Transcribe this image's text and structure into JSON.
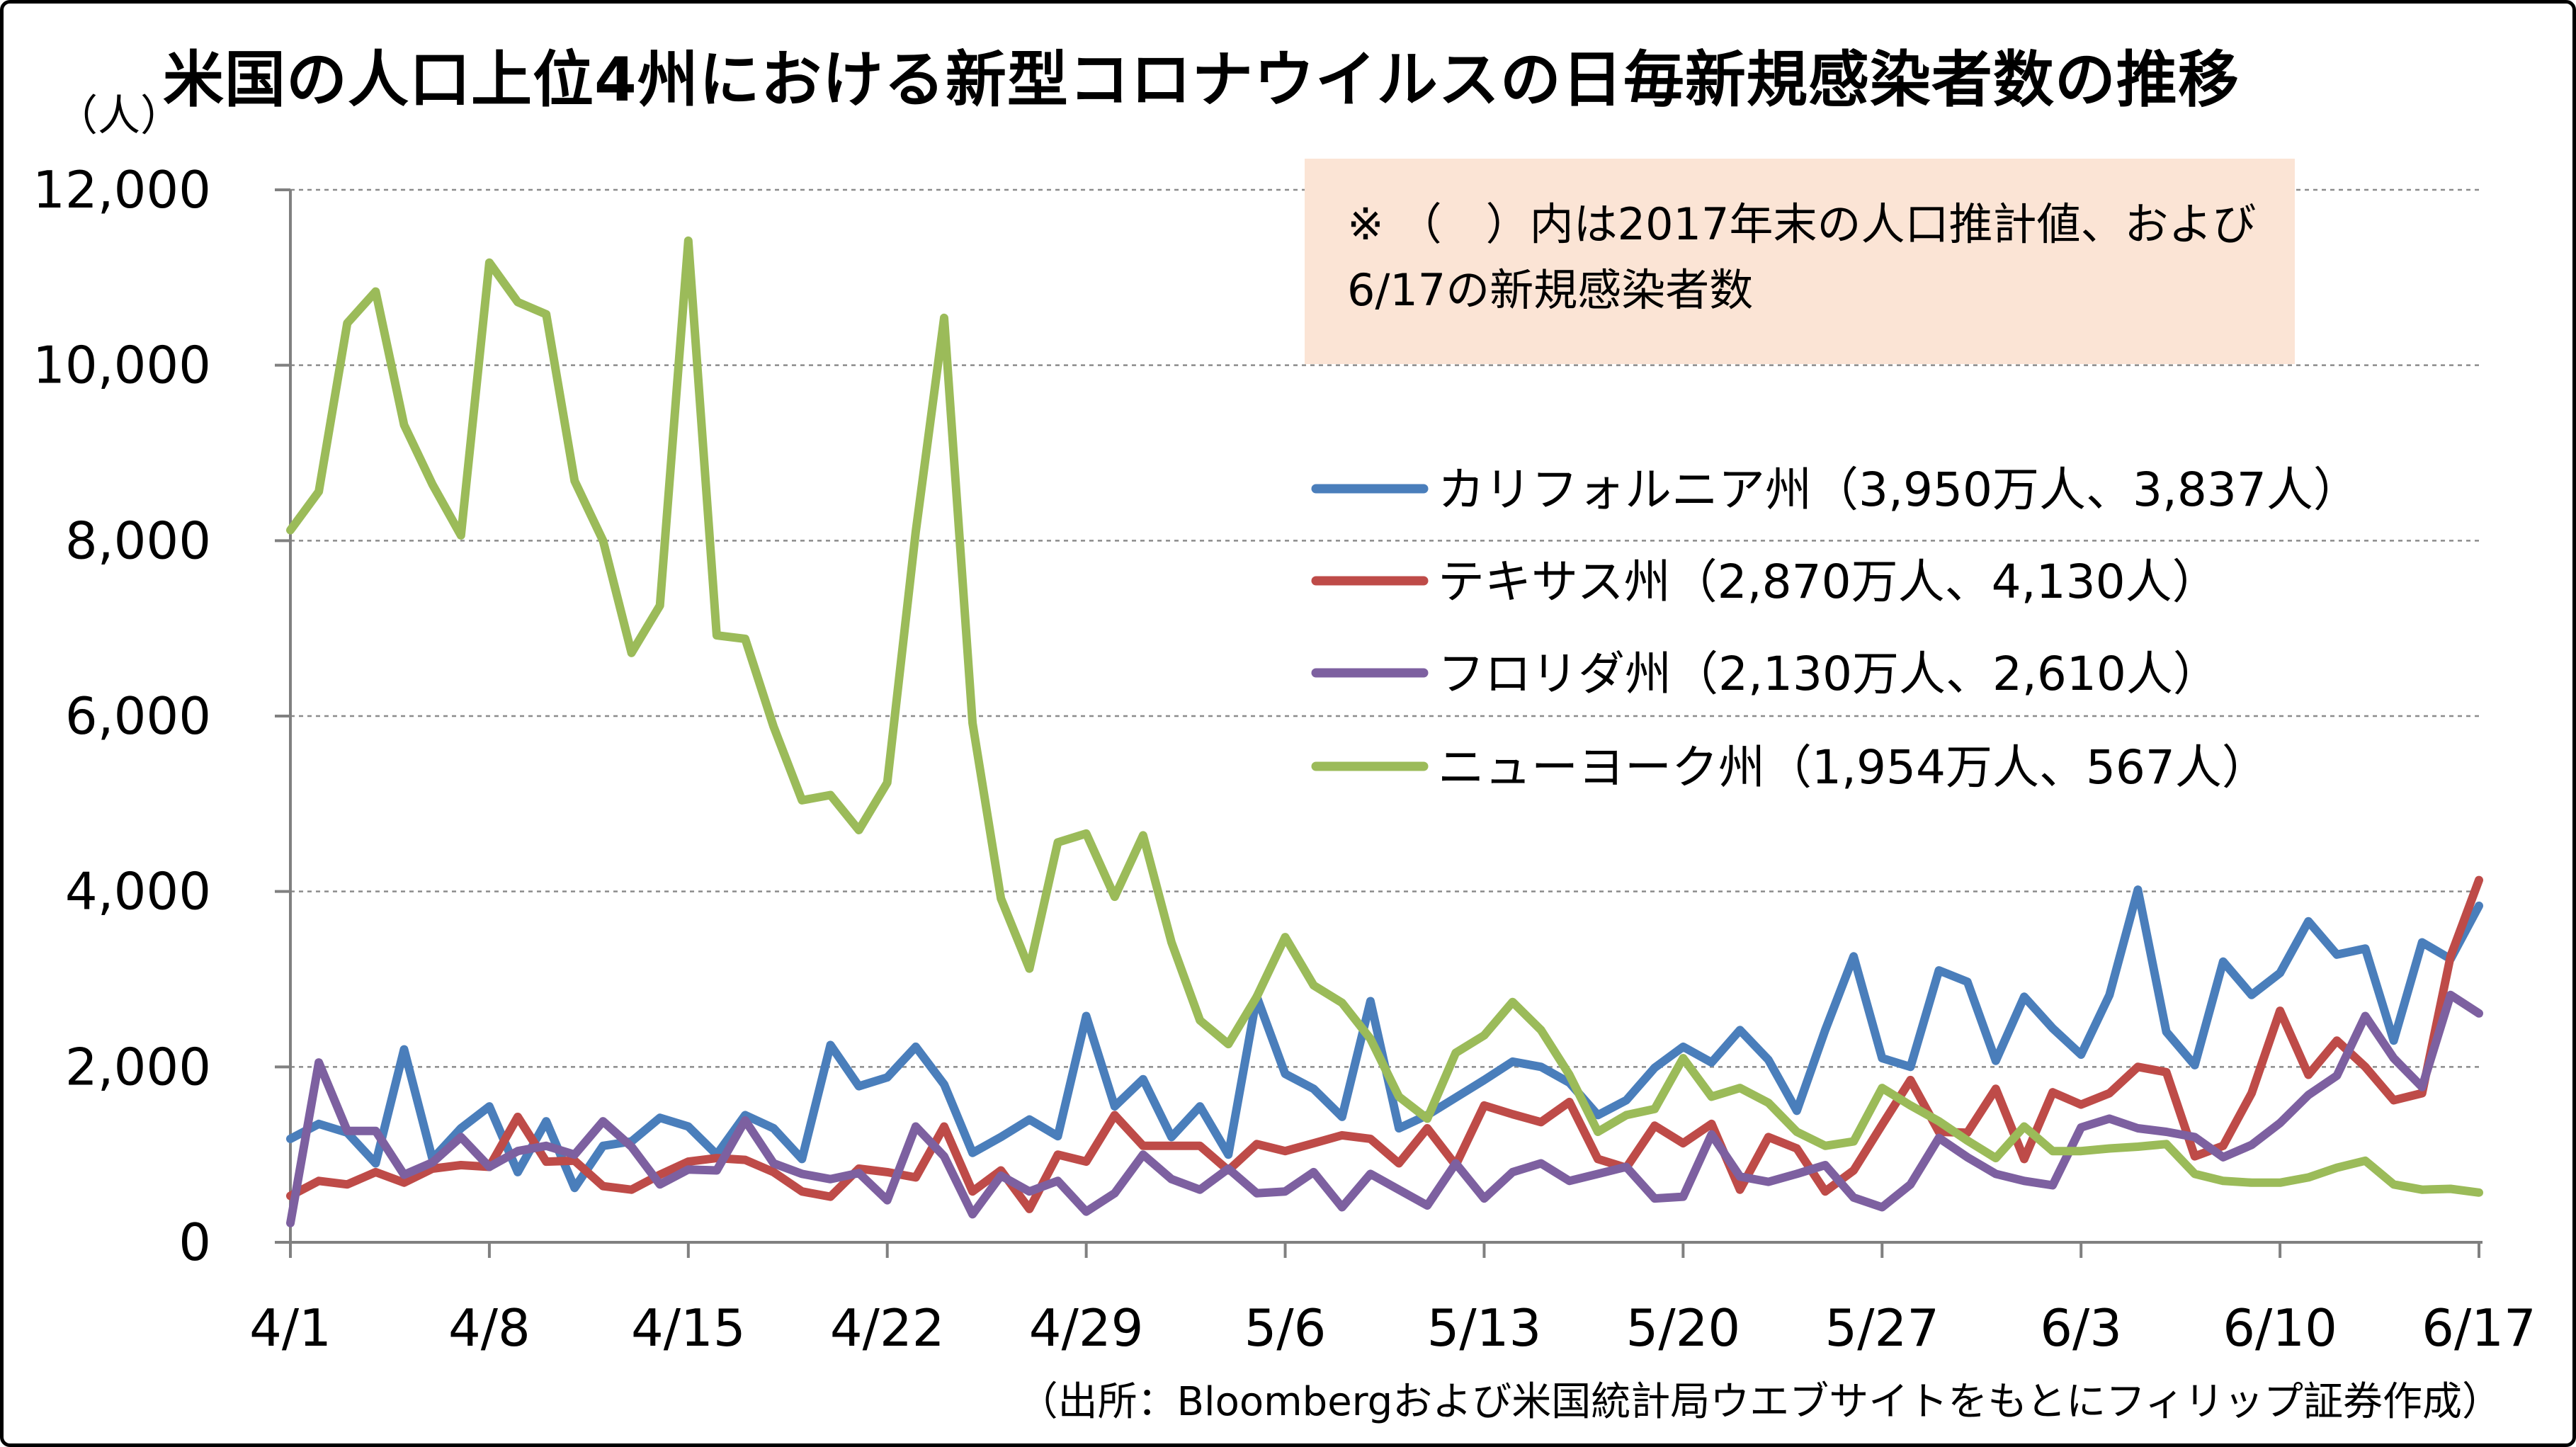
{
  "chart_data": {
    "type": "line",
    "title": "米国の人口上位4州における新型コロナウイルスの日毎新規感染者数の推移",
    "ylabel": "（人）",
    "ylim": [
      0,
      12000
    ],
    "yticks": [
      0,
      2000,
      4000,
      6000,
      8000,
      10000,
      12000
    ],
    "ytick_labels": [
      "0",
      "2,000",
      "4,000",
      "6,000",
      "8,000",
      "10,000",
      "12,000"
    ],
    "x_tick_positions": [
      0,
      7,
      14,
      21,
      28,
      35,
      42,
      49,
      56,
      63,
      70,
      77
    ],
    "x_tick_labels": [
      "4/1",
      "4/8",
      "4/15",
      "4/22",
      "4/29",
      "5/6",
      "5/13",
      "5/20",
      "5/27",
      "6/3",
      "6/10",
      "6/17"
    ],
    "grid": "horizontal dashed",
    "legend_position": "right",
    "series": [
      {
        "name": "カリフォルニア州（3,950万人、3,837人）",
        "color": "#4A7EBB",
        "values": [
          1180,
          1350,
          1250,
          900,
          2200,
          950,
          1300,
          1550,
          800,
          1380,
          620,
          1100,
          1150,
          1420,
          1320,
          1000,
          1450,
          1300,
          950,
          2250,
          1780,
          1880,
          2230,
          1800,
          1020,
          1200,
          1400,
          1210,
          2580,
          1550,
          1860,
          1200,
          1550,
          1000,
          2800,
          1920,
          1750,
          1430,
          2750,
          1300,
          1450,
          1650,
          1850,
          2060,
          2000,
          1820,
          1450,
          1620,
          1990,
          2230,
          2050,
          2420,
          2080,
          1500,
          2420,
          3260,
          2100,
          2000,
          3100,
          2970,
          2070,
          2800,
          2440,
          2140,
          2820,
          4020,
          2400,
          2020,
          3200,
          2820,
          3070,
          3660,
          3280,
          3350,
          2300,
          3420,
          3230,
          3837
        ]
      },
      {
        "name": "テキサス州（2,870万人、4,130人）",
        "color": "#BE4B48",
        "values": [
          530,
          700,
          660,
          800,
          680,
          840,
          880,
          860,
          1430,
          920,
          930,
          640,
          600,
          770,
          920,
          960,
          940,
          800,
          580,
          520,
          840,
          800,
          740,
          1320,
          580,
          820,
          380,
          1000,
          920,
          1450,
          1100,
          1100,
          1100,
          820,
          1120,
          1040,
          1130,
          1220,
          1180,
          900,
          1300,
          880,
          1560,
          1460,
          1370,
          1600,
          950,
          850,
          1330,
          1130,
          1350,
          600,
          1200,
          1070,
          580,
          820,
          1340,
          1850,
          1260,
          1250,
          1750,
          950,
          1710,
          1570,
          1700,
          2000,
          1940,
          980,
          1100,
          1700,
          2640,
          1910,
          2300,
          2000,
          1620,
          1700,
          3260,
          4130
        ]
      },
      {
        "name": "フロリダ州（2,130万人、2,610人）",
        "color": "#7D60A0",
        "values": [
          220,
          2050,
          1270,
          1270,
          770,
          910,
          1200,
          860,
          1040,
          1100,
          1000,
          1380,
          1090,
          660,
          830,
          820,
          1390,
          900,
          780,
          720,
          790,
          480,
          1320,
          980,
          320,
          760,
          580,
          700,
          350,
          560,
          1000,
          720,
          600,
          840,
          560,
          580,
          800,
          400,
          780,
          600,
          420,
          900,
          500,
          800,
          900,
          700,
          780,
          860,
          500,
          520,
          1230,
          750,
          690,
          780,
          880,
          510,
          400,
          660,
          1190,
          970,
          780,
          700,
          650,
          1310,
          1410,
          1300,
          1260,
          1200,
          970,
          1110,
          1360,
          1680,
          1900,
          2580,
          2100,
          1770,
          2820,
          2610
        ]
      },
      {
        "name": "ニューヨーク州（1,954万人、567人）",
        "color": "#9BBB59",
        "values": [
          8120,
          8560,
          10480,
          10840,
          9320,
          8640,
          8060,
          11170,
          10720,
          10580,
          8680,
          8000,
          6720,
          7260,
          11420,
          6920,
          6880,
          5880,
          5040,
          5100,
          4700,
          5240,
          8100,
          10540,
          5920,
          3920,
          3120,
          4560,
          4660,
          3940,
          4640,
          3420,
          2530,
          2260,
          2800,
          3480,
          2930,
          2730,
          2320,
          1660,
          1410,
          2160,
          2360,
          2740,
          2420,
          1910,
          1260,
          1450,
          1520,
          2100,
          1660,
          1760,
          1590,
          1260,
          1100,
          1150,
          1760,
          1560,
          1380,
          1160,
          960,
          1320,
          1040,
          1040,
          1070,
          1090,
          1120,
          780,
          700,
          680,
          680,
          740,
          850,
          930,
          660,
          600,
          610,
          567
        ]
      }
    ]
  },
  "unit_label": "（人）",
  "note": {
    "line1": "※ （　）内は2017年末の人口推計値、および",
    "line2": "6/17の新規感染者数"
  },
  "source": "（出所：Bloombergおよび米国統計局ウエブサイトをもとにフィリップ証券作成）"
}
